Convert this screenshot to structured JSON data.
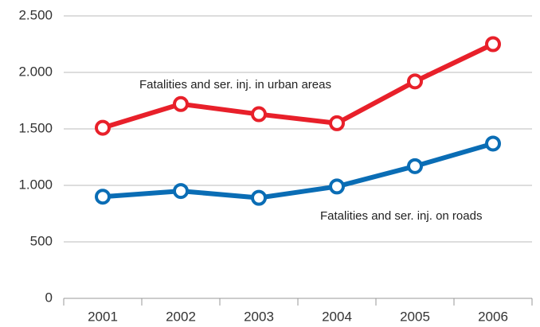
{
  "chart_data": {
    "type": "line",
    "categories": [
      "2001",
      "2002",
      "2003",
      "2004",
      "2005",
      "2006"
    ],
    "series": [
      {
        "name": "Fatalities and ser. inj. in urban areas",
        "color": "#e8202a",
        "values": [
          1510,
          1720,
          1630,
          1550,
          1920,
          2250
        ]
      },
      {
        "name": "Fatalities and ser. inj. on roads",
        "color": "#0a6db5",
        "values": [
          900,
          950,
          890,
          990,
          1170,
          1370
        ]
      }
    ],
    "ylim": [
      0,
      2500
    ],
    "yticks": [
      0,
      500,
      {
        "value": 1000,
        "label": "1.000"
      },
      {
        "value": 1500,
        "label": "1.500"
      },
      {
        "value": 2000,
        "label": "2.000"
      },
      {
        "value": 2500,
        "label": "2.500"
      }
    ],
    "grid": true
  }
}
